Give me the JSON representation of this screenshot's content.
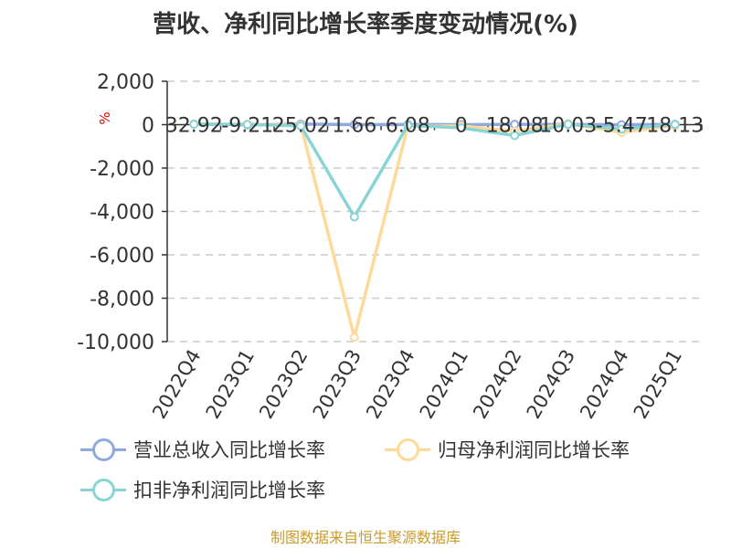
{
  "title": "营收、净利同比增长率季度变动情况(%)",
  "footer": "制图数据来自恒生聚源数据库",
  "chart_data": {
    "type": "line",
    "unit_label": "%",
    "categories": [
      "2022Q4",
      "2023Q1",
      "2023Q2",
      "2023Q3",
      "2023Q4",
      "2024Q1",
      "2024Q2",
      "2024Q3",
      "2024Q4",
      "2025Q1"
    ],
    "ylim": [
      -10000,
      2000
    ],
    "yticks": [
      2000,
      0,
      -2000,
      -4000,
      -6000,
      -8000,
      -10000
    ],
    "ytick_labels": [
      "2,000",
      "0",
      "-2,000",
      "-4,000",
      "-6,000",
      "-8,000",
      "-10,000"
    ],
    "grid": true,
    "legend_position": "bottom",
    "point_labels": [
      "32.92",
      "-9.21",
      "25.02",
      "1.66",
      "6.08",
      "0",
      "18.08",
      "10.03",
      "-5.47",
      "18.13"
    ],
    "series": [
      {
        "name": "营业总收入同比增长率",
        "color": "#8faadc",
        "values": [
          32.92,
          -9.21,
          25.02,
          1.66,
          6.08,
          0,
          18.08,
          10.03,
          -5.47,
          18.13
        ]
      },
      {
        "name": "归母净利润同比增长率",
        "color": "#ffd99a",
        "values": [
          30,
          20,
          -20,
          -9800,
          -80,
          -60,
          -300,
          40,
          -350,
          -40
        ]
      },
      {
        "name": "扣非净利润同比增长率",
        "color": "#89d4d4",
        "values": [
          20,
          10,
          -60,
          -4250,
          -30,
          -150,
          -500,
          20,
          -200,
          10
        ]
      }
    ]
  }
}
